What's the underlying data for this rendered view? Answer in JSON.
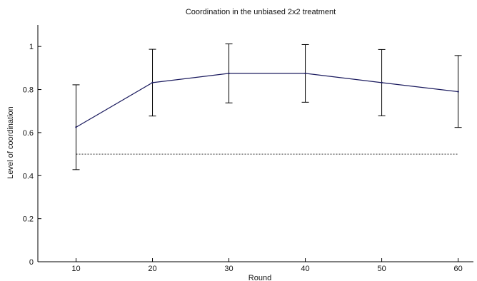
{
  "chart_data": {
    "type": "line",
    "title": "Coordination in the unbiased 2x2 treatment",
    "xlabel": "Round",
    "ylabel": "Level of coordination",
    "xlim": [
      5,
      62
    ],
    "ylim": [
      0,
      1.1
    ],
    "xticks": [
      10,
      20,
      30,
      40,
      50,
      60
    ],
    "yticks": [
      0,
      0.2,
      0.4,
      0.6,
      0.8,
      1
    ],
    "x": [
      10,
      20,
      30,
      40,
      50,
      60
    ],
    "series": [
      {
        "values": [
          0.625,
          0.832,
          0.875,
          0.875,
          0.832,
          0.79
        ],
        "error_lower": [
          0.428,
          0.677,
          0.738,
          0.741,
          0.678,
          0.624
        ],
        "error_upper": [
          0.822,
          0.987,
          1.012,
          1.009,
          0.986,
          0.958
        ],
        "color": "#1a1a5e"
      }
    ],
    "reference_line": {
      "y": 0.5,
      "style": "dotted",
      "color": "#333333"
    },
    "grid": false,
    "legend": "none"
  }
}
